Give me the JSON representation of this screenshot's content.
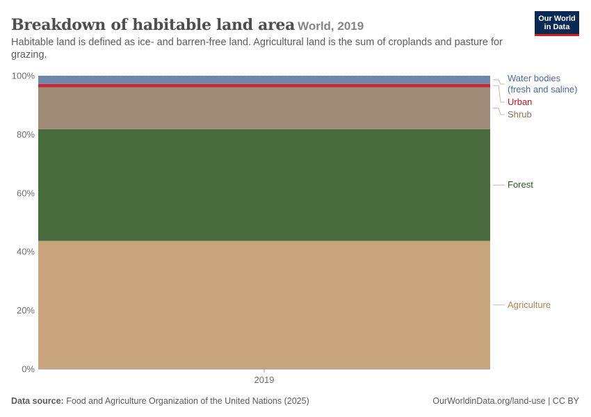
{
  "header": {
    "title": "Breakdown of habitable land area",
    "entity": "World, 2019",
    "subtitle": "Habitable land is defined as ice- and barren-free land. Agricultural land is the sum of croplands and pasture for grazing."
  },
  "logo": {
    "line1": "Our World",
    "line2": "in Data"
  },
  "footer": {
    "source_label": "Data source:",
    "source_text": "Food and Agriculture Organization of the United Nations (2025)",
    "license": "OurWorldinData.org/land-use | CC BY"
  },
  "chart_data": {
    "type": "bar",
    "stacked": true,
    "categories": [
      "2019"
    ],
    "ylim": [
      0,
      100
    ],
    "yticks": [
      0,
      20,
      40,
      60,
      80,
      100
    ],
    "ytick_labels": [
      "0%",
      "20%",
      "40%",
      "60%",
      "80%",
      "100%"
    ],
    "grid": "horizontal-dashed",
    "legend": "right (inline labels)",
    "series": [
      {
        "name": "Agriculture",
        "values": [
          43.7
        ],
        "color": "#c8a57c",
        "label_color": "#a9845a"
      },
      {
        "name": "Forest",
        "values": [
          38.1
        ],
        "color": "#486c3e",
        "label_color": "#2e5424"
      },
      {
        "name": "Shrub",
        "values": [
          14.3
        ],
        "color": "#a08b77",
        "label_color": "#8f6f57"
      },
      {
        "name": "Urban",
        "values": [
          1.1
        ],
        "color": "#c8283b",
        "label_color": "#b5161e"
      },
      {
        "name": "Water bodies (fresh and saline)",
        "values": [
          2.8
        ],
        "color": "#6f86aa",
        "label_color": "#4a6a9a"
      }
    ]
  }
}
